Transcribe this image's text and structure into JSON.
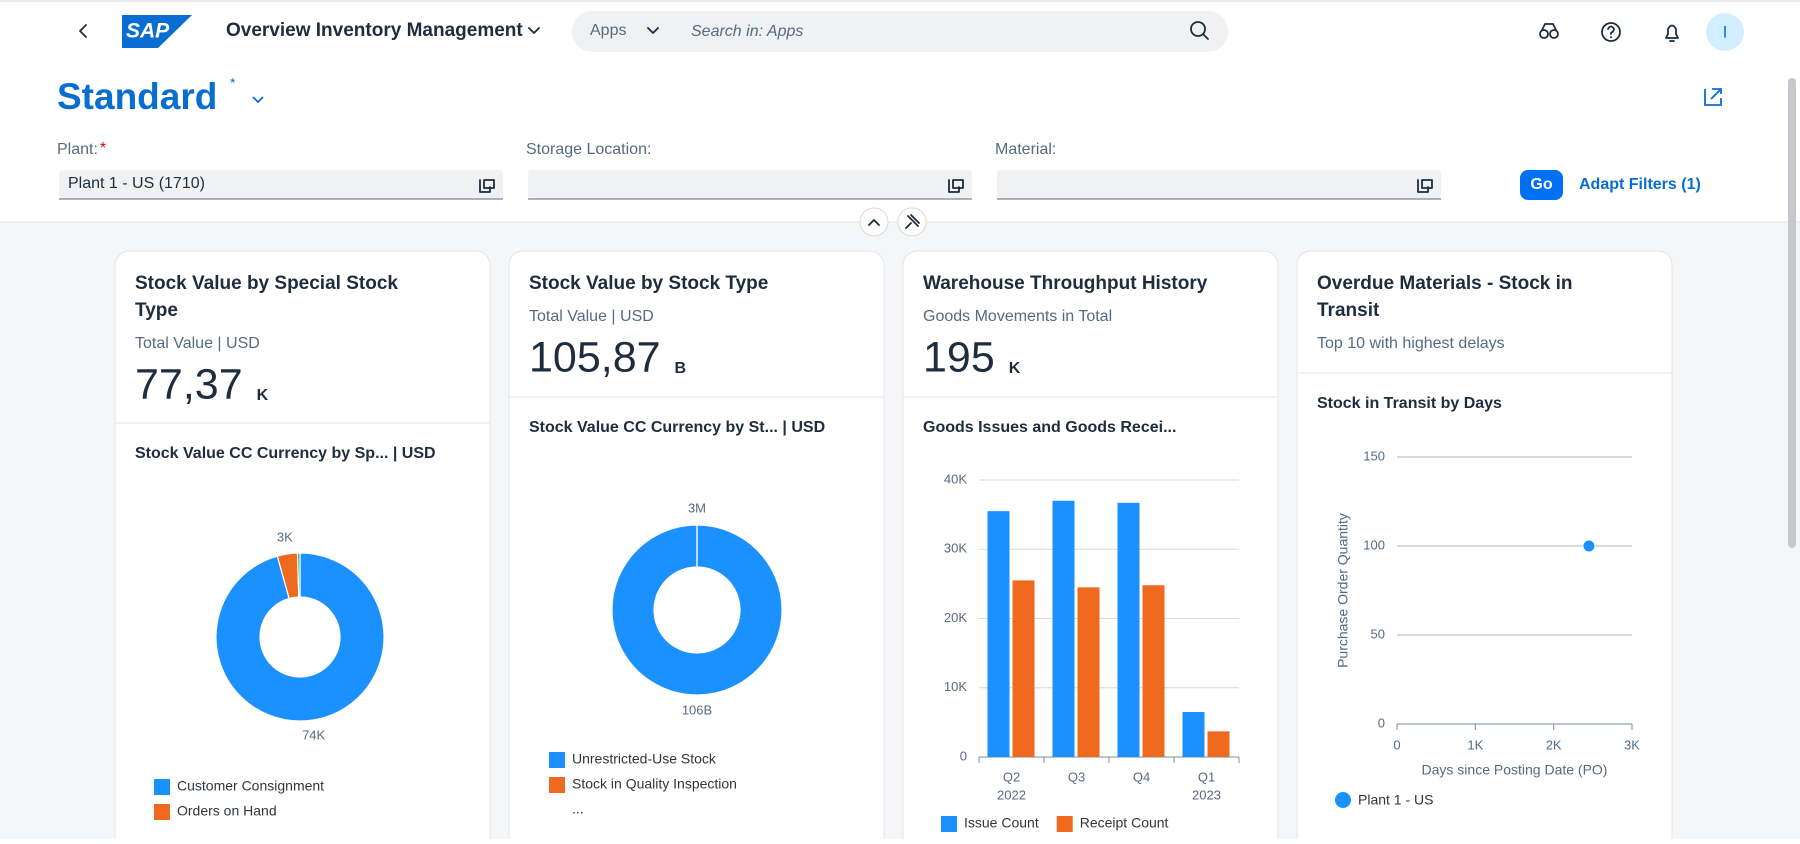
{
  "header": {
    "logo": "SAP",
    "app_title": "Overview Inventory Management",
    "search_scope": "Apps",
    "search_placeholder": "Search in: Apps",
    "avatar": "I"
  },
  "variant": {
    "name": "Standard",
    "modified": "*"
  },
  "filters": {
    "fields": [
      {
        "label": "Plant:",
        "required": "*",
        "value": "Plant 1 - US (1710)"
      },
      {
        "label": "Storage Location:"
      },
      {
        "label": "Material:"
      }
    ],
    "go": "Go",
    "adapt": "Adapt Filters (1)"
  },
  "cards": [
    {
      "title": "Stock Value by Special Stock Type",
      "subtitle": "Total Value | USD",
      "kpi": "77,37",
      "kpi_unit": "K",
      "chart_title": "Stock Value CC Currency by Sp... | USD"
    },
    {
      "title": "Stock Value by Stock Type",
      "subtitle": "Total Value | USD",
      "kpi": "105,87",
      "kpi_unit": "B",
      "chart_title": "Stock Value CC Currency by St... | USD"
    },
    {
      "title": "Warehouse Throughput History",
      "subtitle": "Goods Movements in Total",
      "kpi": "195",
      "kpi_unit": "K",
      "chart_title": "Goods Issues and Goods Recei..."
    },
    {
      "title": "Overdue Materials - Stock in Transit",
      "subtitle": "Top 10 with highest delays",
      "chart_title": "Stock in Transit by Days"
    }
  ],
  "chart_data": [
    {
      "type": "pie",
      "donut": true,
      "categories": [
        "Customer Consignment",
        "Orders on Hand",
        null
      ],
      "values": [
        74000,
        3000,
        370
      ],
      "value_labels": [
        "74K",
        "3K",
        null
      ],
      "colors": [
        "#1b90ff",
        "#ef6a1f",
        "#3fa45b"
      ]
    },
    {
      "type": "pie",
      "donut": true,
      "categories": [
        "Unrestricted-Use Stock",
        "Stock in Quality Inspection"
      ],
      "values": [
        106000000000,
        3000000
      ],
      "value_labels": [
        "106B",
        "3M"
      ],
      "colors": [
        "#1b90ff",
        "#ef6a1f"
      ],
      "legend_more": "..."
    },
    {
      "type": "bar",
      "categories": [
        "Q2",
        "Q3",
        "Q4",
        "Q1"
      ],
      "category_groups": [
        "2022",
        null,
        null,
        "2023"
      ],
      "series": [
        {
          "name": "Issue Count",
          "color": "#1b90ff",
          "values": [
            35500,
            37000,
            36700,
            6500
          ]
        },
        {
          "name": "Receipt Count",
          "color": "#ef6a1f",
          "values": [
            25500,
            24500,
            24800,
            3700
          ]
        }
      ],
      "ylim": [
        0,
        40000
      ],
      "yticks": [
        0,
        {
          "value": 10000,
          "label": "10K"
        },
        {
          "value": 20000,
          "label": "20K"
        },
        {
          "value": 30000,
          "label": "30K"
        },
        {
          "value": 40000,
          "label": "40K"
        }
      ],
      "grid": true
    },
    {
      "type": "scatter",
      "x_label": "Days since Posting Date (PO)",
      "y_label": "Purchase Order Quantity",
      "series": [
        {
          "name": "Plant 1 - US",
          "color": "#1b90ff",
          "x": [
            2450
          ],
          "values": [
            100
          ]
        }
      ],
      "xlim": [
        0,
        3000
      ],
      "xticks": [
        0,
        {
          "value": 1000,
          "label": "1K"
        },
        {
          "value": 2000,
          "label": "2K"
        },
        {
          "value": 3000,
          "label": "3K"
        }
      ],
      "ylim": [
        0,
        150
      ],
      "yticks": [
        0,
        50,
        100,
        150
      ],
      "grid": true
    }
  ]
}
